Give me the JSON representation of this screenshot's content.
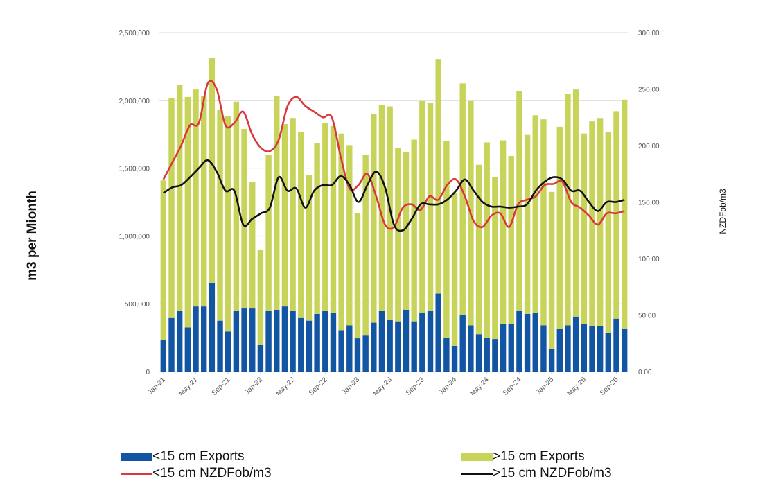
{
  "chart_data": {
    "type": "bar",
    "title": "",
    "ylabel": "m3 per Mionth",
    "y2label": "NZDFob/m3",
    "xlabel": "",
    "ylim": [
      0,
      2500000
    ],
    "y2lim": [
      0,
      300
    ],
    "grid": true,
    "legend_placement": "bottom",
    "yticks": [
      "0",
      "500,000",
      "1,000,000",
      "1,500,000",
      "2,000,000",
      "2,500,000"
    ],
    "ytick_values": [
      0,
      500000,
      1000000,
      1500000,
      2000000,
      2500000
    ],
    "y2ticks": [
      "0.00",
      "50.00",
      "100.00",
      "150.00",
      "200.00",
      "250.00",
      "300.00"
    ],
    "y2tick_values": [
      0,
      50,
      100,
      150,
      200,
      250,
      300
    ],
    "xtick_labels": [
      "Jan-21",
      "May-21",
      "Sep-21",
      "Jan-22",
      "May-22",
      "Sep-22",
      "Jan-23",
      "May-23",
      "Sep-23",
      "Jan-24",
      "May-24",
      "Sep-24",
      "Jan-25",
      "May-25",
      "Sep-25"
    ],
    "xtick_every": 4,
    "categories": [
      "Jan-21",
      "Feb-21",
      "Mar-21",
      "Apr-21",
      "May-21",
      "Jun-21",
      "Jul-21",
      "Aug-21",
      "Sep-21",
      "Oct-21",
      "Nov-21",
      "Dec-21",
      "Jan-22",
      "Feb-22",
      "Mar-22",
      "Apr-22",
      "May-22",
      "Jun-22",
      "Jul-22",
      "Aug-22",
      "Sep-22",
      "Oct-22",
      "Nov-22",
      "Dec-22",
      "Jan-23",
      "Feb-23",
      "Mar-23",
      "Apr-23",
      "May-23",
      "Jun-23",
      "Jul-23",
      "Aug-23",
      "Sep-23",
      "Oct-23",
      "Nov-23",
      "Dec-23",
      "Jan-24",
      "Feb-24",
      "Mar-24",
      "Apr-24",
      "May-24",
      "Jun-24",
      "Jul-24",
      "Aug-24",
      "Sep-24",
      "Oct-24",
      "Nov-24",
      "Dec-24",
      "Jan-25",
      "Feb-25",
      "Mar-25",
      "Apr-25",
      "May-25",
      "Jun-25",
      "Jul-25",
      "Aug-25",
      "Sep-25",
      "Oct-25"
    ],
    "series": [
      {
        "name": "<15 cm Exports",
        "type": "bar",
        "axis": "left",
        "stack": "exports",
        "color": "#1155a3",
        "values": [
          230000,
          395000,
          450000,
          325000,
          480000,
          480000,
          655000,
          375000,
          295000,
          445000,
          465000,
          465000,
          200000,
          445000,
          455000,
          480000,
          450000,
          395000,
          375000,
          425000,
          450000,
          435000,
          305000,
          340000,
          245000,
          265000,
          360000,
          445000,
          380000,
          370000,
          455000,
          370000,
          430000,
          450000,
          575000,
          250000,
          190000,
          415000,
          340000,
          275000,
          250000,
          240000,
          350000,
          350000,
          445000,
          425000,
          435000,
          340000,
          165000,
          315000,
          340000,
          405000,
          350000,
          335000,
          335000,
          285000,
          390000,
          315000
        ]
      },
      {
        "name": ">15 cm Exports",
        "type": "bar",
        "axis": "left",
        "stack": "exports",
        "color": "#c8d35a",
        "values": [
          1180000,
          1620000,
          1665000,
          1700000,
          1600000,
          1555000,
          1660000,
          1555000,
          1590000,
          1545000,
          1325000,
          935000,
          700000,
          1155000,
          1580000,
          1345000,
          1420000,
          1370000,
          1075000,
          1260000,
          1380000,
          1375000,
          1450000,
          1330000,
          925000,
          1335000,
          1540000,
          1520000,
          1575000,
          1280000,
          1165000,
          1340000,
          1570000,
          1530000,
          1730000,
          1450000,
          1130000,
          1710000,
          1655000,
          1250000,
          1440000,
          1195000,
          1355000,
          1240000,
          1625000,
          1320000,
          1455000,
          1520000,
          1160000,
          1490000,
          1710000,
          1675000,
          1405000,
          1510000,
          1535000,
          1480000,
          1530000,
          1690000
        ]
      },
      {
        "name": "<15 cm NZDFob/m3",
        "type": "line",
        "axis": "right",
        "color": "#d9363e",
        "values": [
          170,
          185,
          200,
          218,
          220,
          255,
          250,
          218,
          220,
          230,
          210,
          198,
          195,
          205,
          235,
          243,
          235,
          230,
          225,
          225,
          190,
          162,
          165,
          175,
          155,
          130,
          128,
          145,
          148,
          143,
          155,
          152,
          165,
          170,
          155,
          133,
          128,
          138,
          140,
          128,
          148,
          152,
          155,
          165,
          166,
          168,
          150,
          145,
          138,
          130,
          140,
          140,
          142
        ]
      },
      {
        "name": ">15 cm NZDFob/m3",
        "type": "line",
        "axis": "right",
        "color": "#111111",
        "values": [
          158,
          163,
          165,
          172,
          180,
          187,
          177,
          160,
          160,
          130,
          135,
          140,
          145,
          172,
          160,
          162,
          145,
          160,
          165,
          165,
          173,
          165,
          150,
          165,
          177,
          163,
          130,
          125,
          135,
          148,
          148,
          148,
          152,
          160,
          170,
          160,
          150,
          146,
          146,
          145,
          146,
          148,
          160,
          168,
          172,
          170,
          160,
          160,
          150,
          142,
          150,
          150,
          152
        ]
      }
    ]
  },
  "legend": {
    "items": [
      {
        "label": "<15 cm Exports",
        "kind": "bar",
        "color": "#1155a3"
      },
      {
        "label": ">15 cm Exports",
        "kind": "bar",
        "color": "#c8d35a"
      },
      {
        "label": "<15 cm NZDFob/m3",
        "kind": "line",
        "color": "#d9363e"
      },
      {
        "label": ">15 cm NZDFob/m3",
        "kind": "line",
        "color": "#111111"
      }
    ]
  }
}
